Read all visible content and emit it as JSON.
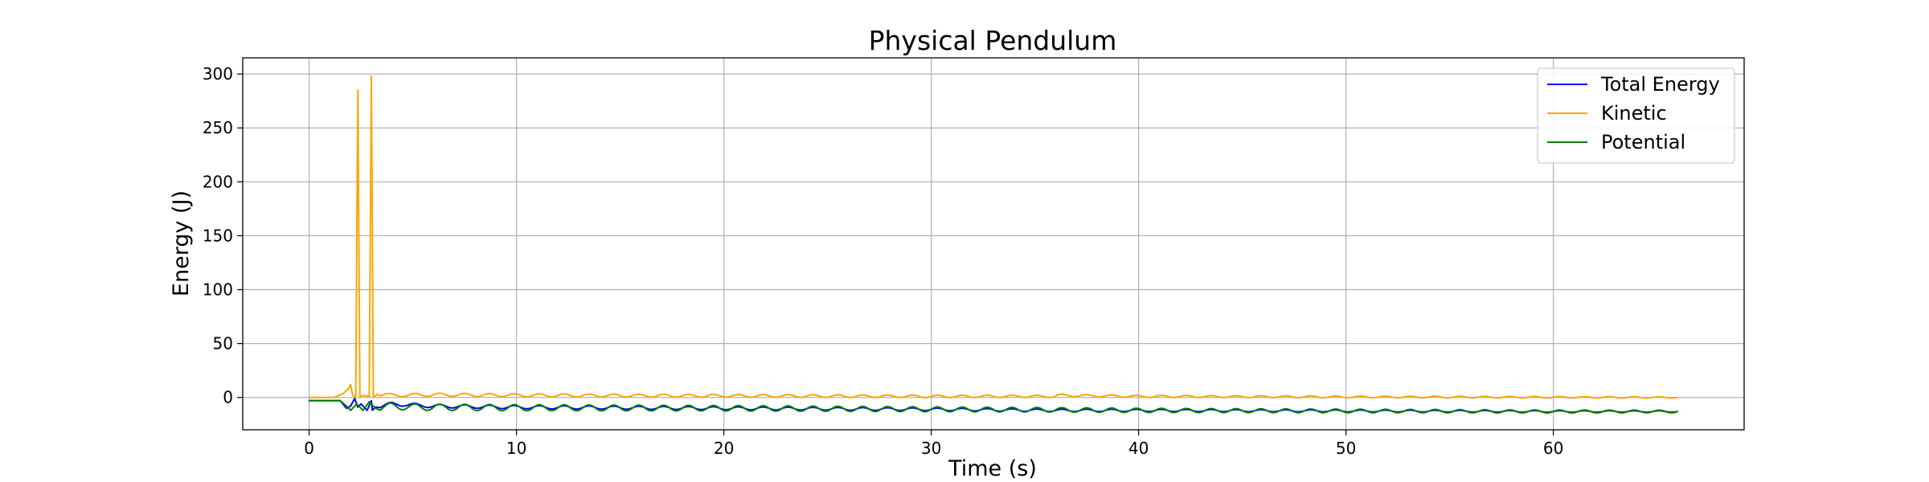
{
  "chart_data": {
    "type": "line",
    "title": "Physical Pendulum",
    "xlabel": "Time (s)",
    "ylabel": "Energy (J)",
    "xlim": [
      -3.2,
      69.2
    ],
    "ylim": [
      -30,
      315
    ],
    "xticks": [
      0,
      10,
      20,
      30,
      40,
      50,
      60
    ],
    "yticks": [
      0,
      50,
      100,
      150,
      200,
      250,
      300
    ],
    "grid": true,
    "legend_position": "top-right",
    "series": [
      {
        "name": "Total Energy",
        "color": "#0000ff",
        "x": [
          0,
          1.5,
          1.8,
          2.0,
          2.2,
          2.35,
          2.5,
          2.8,
          3.0,
          3.05,
          3.2,
          4.0,
          6.0,
          10.0,
          20.0,
          30.0,
          36.0,
          40.0,
          50.0,
          60.0,
          66.0
        ],
        "values": [
          -3,
          -3,
          -10,
          -8,
          -1,
          -9,
          -6,
          -12,
          -3,
          -12,
          -9,
          -6,
          -8,
          -9,
          -10,
          -11,
          -12,
          -12,
          -12.5,
          -13,
          -13
        ]
      },
      {
        "name": "Kinetic",
        "color": "#ffa500",
        "x": [
          0,
          1.2,
          1.6,
          1.9,
          2.0,
          2.1,
          2.25,
          2.35,
          2.45,
          2.6,
          2.9,
          3.0,
          3.1,
          3.3,
          4.0,
          6.0,
          10.0,
          20.0,
          30.0,
          36.0,
          36.05,
          40.0,
          50.0,
          60.0,
          66.0
        ],
        "values": [
          0,
          0,
          3,
          8,
          12,
          2,
          1,
          285,
          0,
          2,
          1,
          298,
          0,
          3,
          2,
          2.5,
          2,
          1.5,
          1,
          1,
          2,
          1,
          0.5,
          0.2,
          0
        ],
        "osc_amp": 1.5
      },
      {
        "name": "Potential",
        "color": "#008000",
        "x": [
          0,
          1.5,
          1.8,
          2.0,
          2.3,
          2.6,
          2.9,
          3.2,
          4.0,
          5.0,
          10.0,
          20.0,
          30.0,
          36.0,
          40.0,
          50.0,
          60.0,
          66.0
        ],
        "values": [
          -3,
          -3,
          -8,
          -12,
          -6,
          -12,
          -4,
          -10,
          -8,
          -9,
          -9.5,
          -10,
          -11,
          -11.5,
          -12,
          -12.5,
          -13,
          -13
        ],
        "osc_amp": 3
      }
    ]
  }
}
